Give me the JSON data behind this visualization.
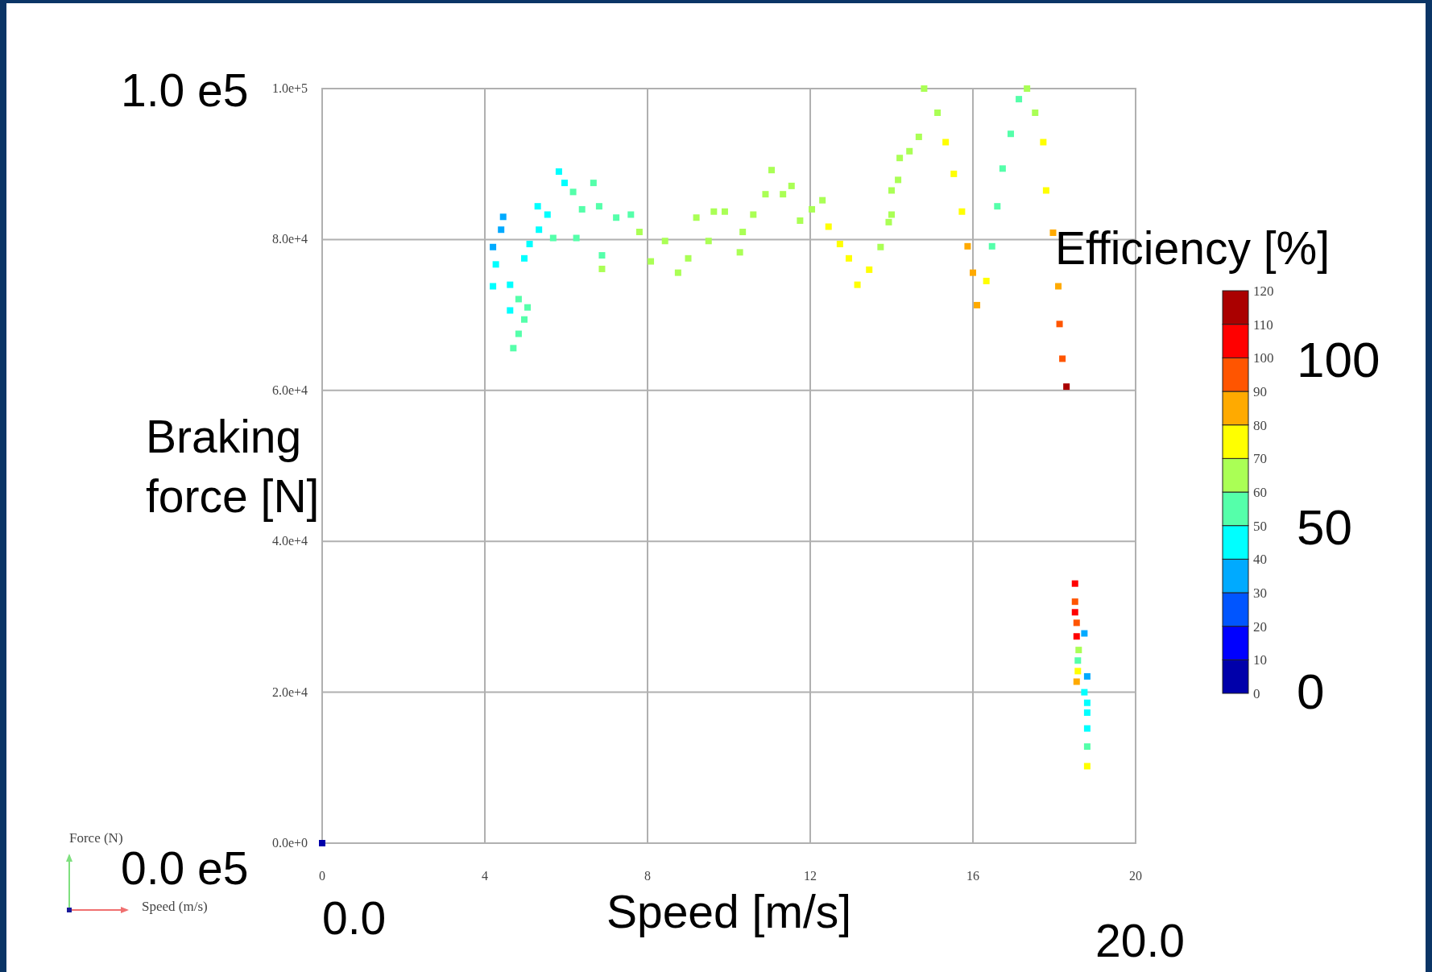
{
  "chart_data": {
    "type": "scatter",
    "xlabel": "Speed  [m/s]",
    "ylabel": "Braking force [N]",
    "clabel": "Efficiency [%]",
    "x": [
      0,
      4.2,
      4.4,
      4.45,
      4.27,
      4.2,
      4.62,
      4.83,
      5.05,
      4.97,
      4.83,
      4.7,
      4.62,
      4.97,
      5.1,
      5.33,
      5.54,
      5.3,
      5.82,
      5.96,
      5.68,
      6.17,
      6.67,
      6.39,
      6.25,
      6.81,
      6.88,
      6.88,
      7.23,
      7.59,
      7.8,
      8.08,
      8.43,
      8.75,
      9.0,
      9.2,
      9.5,
      9.63,
      9.9,
      10.27,
      10.34,
      10.6,
      10.9,
      11.05,
      11.33,
      11.54,
      11.75,
      12.04,
      12.3,
      12.45,
      12.73,
      12.95,
      13.16,
      13.45,
      13.73,
      14.0,
      14.16,
      14.44,
      14.67,
      14.2,
      14.0,
      13.93,
      14.8,
      15.13,
      15.33,
      15.53,
      15.73,
      15.87,
      16.0,
      16.1,
      16.33,
      16.47,
      16.6,
      16.73,
      16.93,
      17.13,
      17.33,
      17.53,
      17.73,
      17.8,
      17.97,
      18.1,
      18.13,
      18.2,
      18.3,
      18.51,
      18.51,
      18.51,
      18.55,
      18.55,
      18.74,
      18.6,
      18.58,
      18.58,
      18.55,
      18.81,
      18.74,
      18.81,
      18.81,
      18.81,
      18.81,
      18.81
    ],
    "values": [
      0,
      79000,
      81300,
      83000,
      76700,
      73800,
      74000,
      72100,
      71000,
      69400,
      67500,
      65600,
      70600,
      77500,
      79400,
      81300,
      83300,
      84400,
      89000,
      87500,
      80200,
      86300,
      87500,
      84000,
      80200,
      84400,
      77900,
      76100,
      82900,
      83300,
      81000,
      77100,
      79800,
      75600,
      77500,
      82900,
      79800,
      83700,
      83700,
      78300,
      81000,
      83300,
      86000,
      89200,
      86000,
      87100,
      82500,
      84000,
      85200,
      81700,
      79400,
      77500,
      74000,
      76000,
      79000,
      83300,
      87900,
      91700,
      93600,
      90800,
      86500,
      82300,
      100000,
      96800,
      92900,
      88700,
      83700,
      79100,
      75600,
      71300,
      74500,
      79100,
      84400,
      89400,
      94000,
      98600,
      100000,
      96800,
      92900,
      86500,
      80900,
      73800,
      68800,
      64200,
      60500,
      34400,
      32000,
      30600,
      29200,
      27400,
      27800,
      25600,
      24200,
      22800,
      21400,
      22100,
      20000,
      18600,
      17300,
      15200,
      12800,
      10200
    ],
    "cvalues": [
      2,
      30,
      35,
      35,
      40,
      45,
      45,
      50,
      55,
      55,
      55,
      55,
      45,
      45,
      45,
      45,
      45,
      45,
      45,
      45,
      55,
      55,
      55,
      55,
      55,
      55,
      55,
      65,
      55,
      55,
      62,
      65,
      65,
      65,
      65,
      65,
      65,
      65,
      65,
      65,
      65,
      65,
      65,
      60,
      65,
      65,
      65,
      65,
      65,
      75,
      75,
      75,
      75,
      75,
      65,
      65,
      65,
      65,
      65,
      65,
      65,
      65,
      65,
      68,
      72,
      75,
      78,
      85,
      85,
      88,
      70,
      55,
      55,
      55,
      55,
      55,
      62,
      65,
      70,
      75,
      80,
      85,
      90,
      95,
      115,
      100,
      95,
      100,
      95,
      100,
      35,
      60,
      55,
      70,
      85,
      35,
      45,
      45,
      45,
      45,
      55,
      75
    ],
    "xlim": [
      0,
      20
    ],
    "ylim": [
      0,
      100000
    ],
    "xticks": [
      0,
      4,
      8,
      12,
      16,
      20
    ],
    "yticks": [
      {
        "value": 0,
        "label": "0.0e+0"
      },
      {
        "value": 20000,
        "label": "2.0e+4"
      },
      {
        "value": 40000,
        "label": "4.0e+4"
      },
      {
        "value": 60000,
        "label": "6.0e+4"
      },
      {
        "value": 80000,
        "label": "8.0e+4"
      },
      {
        "value": 100000,
        "label": "1.0e+5"
      }
    ],
    "clim": [
      0,
      120
    ],
    "cticks": [
      0,
      10,
      20,
      30,
      40,
      50,
      60,
      70,
      80,
      90,
      100,
      110,
      120
    ],
    "grid": true,
    "marker": "square",
    "annotations": [
      "100",
      "50",
      "0",
      "Force (N)",
      "Speed (m/s)",
      "1.0 e5",
      "0.0 e5",
      "0.0",
      "20.0"
    ]
  }
}
